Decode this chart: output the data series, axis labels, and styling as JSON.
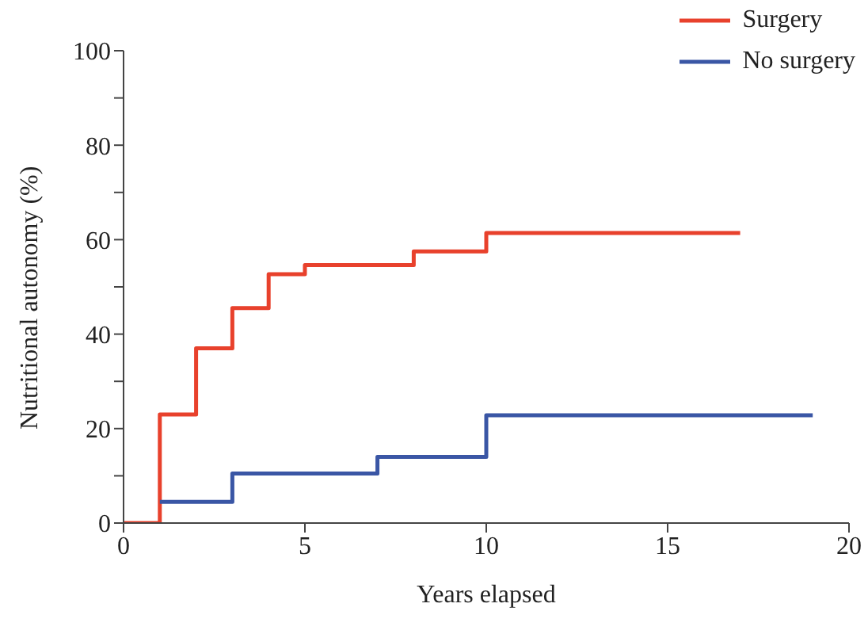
{
  "chart_data": {
    "type": "step",
    "xlabel": "Years elapsed",
    "ylabel": "Nutritional autonomy (%)",
    "xlim": [
      0,
      20
    ],
    "xticks": [
      0,
      5,
      10,
      15,
      20
    ],
    "ylim": [
      0,
      100
    ],
    "yticks": [
      0,
      {
        "value": 10,
        "label": null
      },
      20,
      {
        "value": 30,
        "label": null
      },
      40,
      {
        "value": 50,
        "label": null
      },
      60,
      {
        "value": 70,
        "label": null
      },
      80,
      {
        "value": 90,
        "label": null
      },
      100
    ],
    "grid": false,
    "legend": "top right",
    "marker": "none",
    "line_style": "solid",
    "series": [
      {
        "name": "Surgery",
        "color": "#e8412c",
        "x": [
          0,
          1,
          2,
          3,
          4,
          5,
          8,
          10,
          17
        ],
        "values": [
          0,
          23,
          37,
          45.5,
          52.7,
          54.6,
          57.5,
          61.4,
          61.4
        ]
      },
      {
        "name": "No surgery",
        "color": "#3a56a5",
        "x": [
          1,
          3,
          7,
          10,
          19
        ],
        "values": [
          4.5,
          10.5,
          14,
          22.8,
          22.8
        ]
      }
    ]
  }
}
